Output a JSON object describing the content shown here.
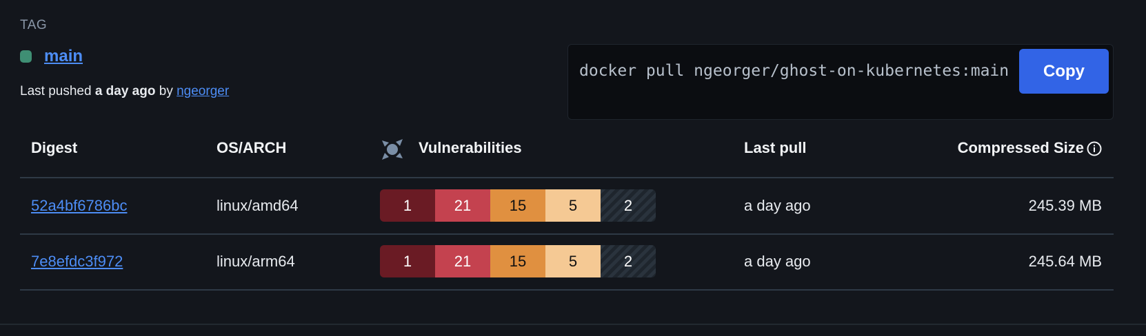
{
  "tag": {
    "label": "TAG",
    "name": "main",
    "status_color": "#3f8f74",
    "pushed_prefix": "Last pushed",
    "pushed_when": "a day ago",
    "pushed_by_prefix": "by",
    "pushed_by": "ngeorger"
  },
  "pull": {
    "command": "docker pull ngeorger/ghost-on-kubernetes:main",
    "copy_label": "Copy"
  },
  "table": {
    "headers": {
      "digest": "Digest",
      "os_arch": "OS/ARCH",
      "vulnerabilities": "Vulnerabilities",
      "last_pull": "Last pull",
      "size": "Compressed Size"
    },
    "severity_colors": [
      "#6a1b24",
      "#c4424f",
      "#e09040",
      "#f5c994",
      "#2a333d"
    ],
    "rows": [
      {
        "digest": "52a4bf6786bc",
        "os_arch": "linux/amd64",
        "vulns": [
          "1",
          "21",
          "15",
          "5",
          "2"
        ],
        "last_pull": "a day ago",
        "size": "245.39 MB"
      },
      {
        "digest": "7e8efdc3f972",
        "os_arch": "linux/arm64",
        "vulns": [
          "1",
          "21",
          "15",
          "5",
          "2"
        ],
        "last_pull": "a day ago",
        "size": "245.64 MB"
      }
    ]
  }
}
